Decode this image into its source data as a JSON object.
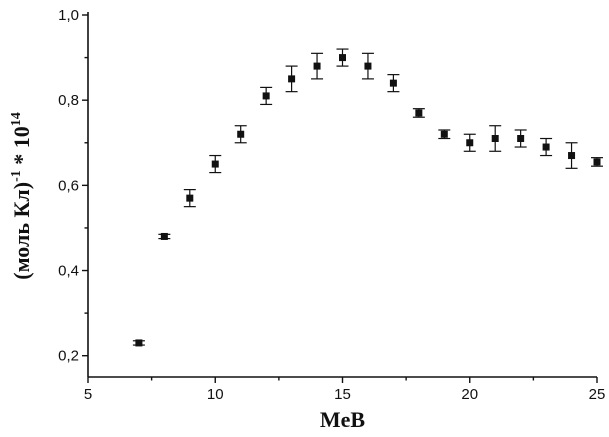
{
  "chart_data": {
    "type": "scatter",
    "title": "",
    "xlabel": "MeB",
    "ylabel_main": "(моль Кл)",
    "ylabel_sup1": "-1",
    "ylabel_mid": " * 10",
    "ylabel_sup2": "14",
    "xlim": [
      5,
      25
    ],
    "ylim": [
      0.15,
      1.0
    ],
    "xticks": [
      5,
      10,
      15,
      20,
      25
    ],
    "xtick_labels": [
      "5",
      "10",
      "15",
      "20",
      "25"
    ],
    "yticks": [
      0.2,
      0.4,
      0.6,
      0.8,
      1.0
    ],
    "ytick_labels": [
      "0,2",
      "0,4",
      "0,6",
      "0,8",
      "1,0"
    ],
    "grid": false,
    "legend": "none",
    "marker": "square",
    "color": "#111111",
    "series": [
      {
        "x": [
          7,
          8,
          9,
          10,
          11,
          12,
          13,
          14,
          15,
          16,
          17,
          18,
          19,
          20,
          21,
          22,
          23,
          24,
          25
        ],
        "y": [
          0.23,
          0.48,
          0.57,
          0.65,
          0.72,
          0.81,
          0.85,
          0.88,
          0.9,
          0.88,
          0.84,
          0.77,
          0.72,
          0.7,
          0.71,
          0.71,
          0.69,
          0.67,
          0.655
        ],
        "yerr": [
          0.005,
          0.005,
          0.02,
          0.02,
          0.02,
          0.02,
          0.03,
          0.03,
          0.02,
          0.03,
          0.02,
          0.01,
          0.01,
          0.02,
          0.03,
          0.02,
          0.02,
          0.03,
          0.01
        ]
      }
    ]
  }
}
